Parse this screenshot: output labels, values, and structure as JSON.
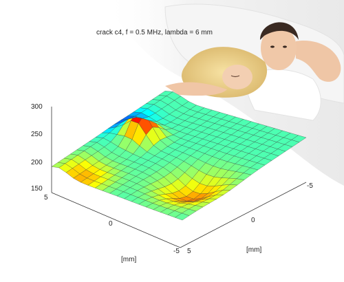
{
  "chart_data": {
    "type": "surface",
    "title": "crack c4, f = 0.5 MHz, lambda = 6 mm",
    "z_ticks": [
      "300",
      "250",
      "200",
      "150"
    ],
    "zlim": [
      150,
      300
    ],
    "x_ticks": [
      "5",
      "0",
      "-5"
    ],
    "y_ticks": [
      "-5",
      "0",
      "5"
    ],
    "xlabel": "[mm]",
    "ylabel": "[mm]",
    "grid": true,
    "colormap": "jet"
  },
  "colors": {
    "bed_sheet": "#f2f2f2",
    "pillow": "#e8e8e8",
    "skin": "#f0c8a8",
    "hair_blonde": "#f2d58a",
    "hair_dark": "#3a2a22"
  }
}
